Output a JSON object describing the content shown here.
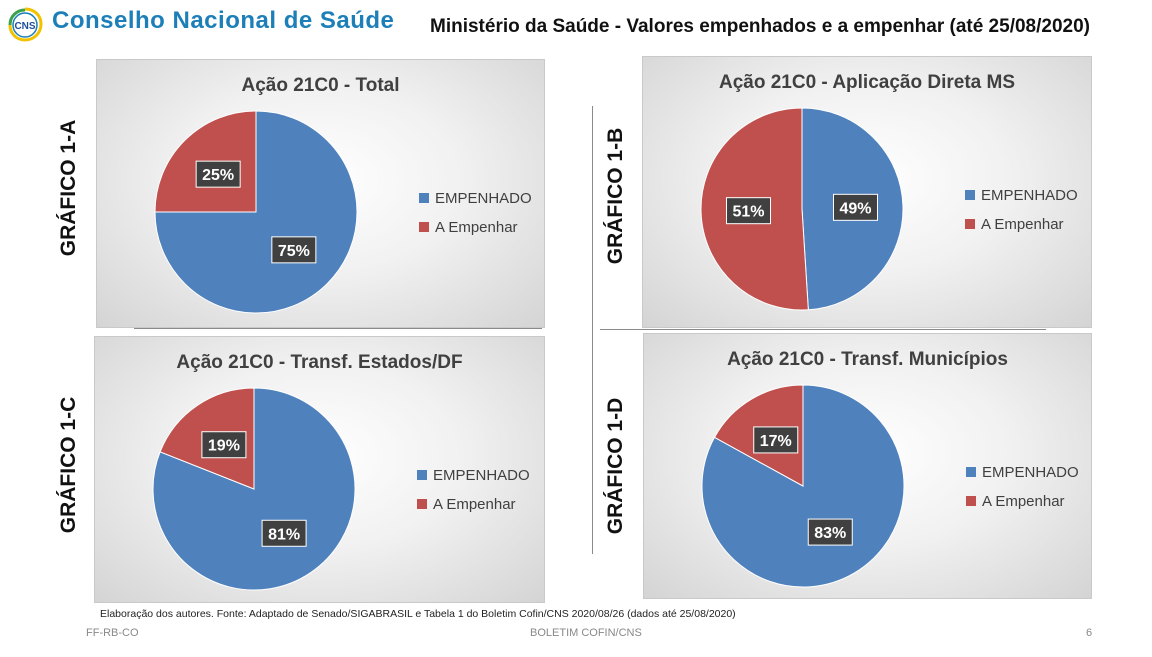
{
  "header": {
    "logo_text": "CNS",
    "org_name": "Conselho Nacional de Saúde",
    "subtitle": "Ministério da Saúde - Valores empenhados e a empenhar (até 25/08/2020)"
  },
  "side_labels": [
    "GRÁFICO 1-A",
    "GRÁFICO 1-B",
    "GRÁFICO 1-C",
    "GRÁFICO 1-D"
  ],
  "colors": {
    "empenhado": "#4f81bd",
    "a_empenhar": "#c0504d",
    "label_box": "#404040"
  },
  "chart_data": [
    {
      "type": "pie",
      "title": "Ação 21C0 - Total",
      "categories": [
        "EMPENHADO",
        "A Empenhar"
      ],
      "values": [
        75,
        25
      ],
      "data_labels": [
        "75%",
        "25%"
      ],
      "legend": "right"
    },
    {
      "type": "pie",
      "title": "Ação 21C0 - Aplicação Direta MS",
      "categories": [
        "EMPENHADO",
        "A Empenhar"
      ],
      "values": [
        49,
        51
      ],
      "data_labels": [
        "49%",
        "51%"
      ],
      "legend": "right"
    },
    {
      "type": "pie",
      "title": "Ação 21C0 - Transf. Estados/DF",
      "categories": [
        "EMPENHADO",
        "A Empenhar"
      ],
      "values": [
        81,
        19
      ],
      "data_labels": [
        "81%",
        "19%"
      ],
      "legend": "right"
    },
    {
      "type": "pie",
      "title": "Ação 21C0 - Transf. Municípios",
      "categories": [
        "EMPENHADO",
        "A Empenhar"
      ],
      "values": [
        83,
        17
      ],
      "data_labels": [
        "83%",
        "17%"
      ],
      "legend": "right"
    }
  ],
  "footnote": "Elaboração dos autores. Fonte: Adaptado de Senado/SIGABRASIL e Tabela 1 do Boletim Cofin/CNS 2020/08/26  (dados até 25/08/2020)",
  "footer": {
    "left": "FF-RB-CO",
    "center": "BOLETIM COFIN/CNS",
    "page_number": "6"
  }
}
